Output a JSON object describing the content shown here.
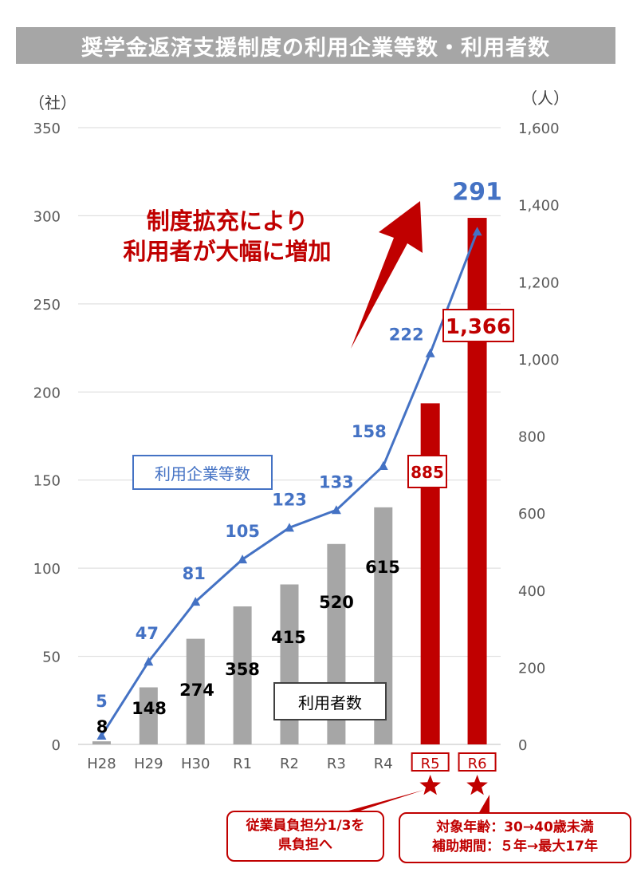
{
  "title": "奨学金返済支援制度の利用企業等数・利用者数",
  "left_axis_unit": "（社）",
  "right_axis_unit": "（人）",
  "annotation": [
    "制度拡充により",
    "利用者が大幅に増加"
  ],
  "label_companies": "利用企業等数",
  "label_users": "利用者数",
  "callout_r5": [
    "従業員負担分1/3を",
    "県負担へ"
  ],
  "callout_r6": [
    "対象年齢：30→40歳未満",
    "補助期間：５年→最大17年"
  ],
  "colors": {
    "line": "#4472c4",
    "bar_gray": "#a6a6a6",
    "bar_red": "#c00000",
    "title_bg": "#a6a6a6"
  },
  "chart_data": {
    "type": "bar+line",
    "categories": [
      "H28",
      "H29",
      "H30",
      "R1",
      "R2",
      "R3",
      "R4",
      "R5",
      "R6"
    ],
    "highlight_categories": [
      "R5",
      "R6"
    ],
    "series": [
      {
        "name": "利用企業等数",
        "type": "line",
        "axis": "left",
        "values": [
          5,
          47,
          81,
          105,
          123,
          133,
          158,
          222,
          291
        ]
      },
      {
        "name": "利用者数",
        "type": "bar",
        "axis": "right",
        "values": [
          8,
          148,
          274,
          358,
          415,
          520,
          615,
          885,
          1366
        ]
      }
    ],
    "left_axis": {
      "ylim": [
        0,
        350
      ],
      "ticks": [
        "0",
        "50",
        "100",
        "150",
        "200",
        "250",
        "300",
        "350"
      ]
    },
    "right_axis": {
      "ylim": [
        0,
        1600
      ],
      "ticks": [
        "0",
        "200",
        "400",
        "600",
        "800",
        "1,000",
        "1,200",
        "1,400",
        "1,600"
      ]
    },
    "value_labels_users": [
      "8",
      "148",
      "274",
      "358",
      "415",
      "520",
      "615",
      "885",
      "1,366"
    ],
    "grid": true
  }
}
